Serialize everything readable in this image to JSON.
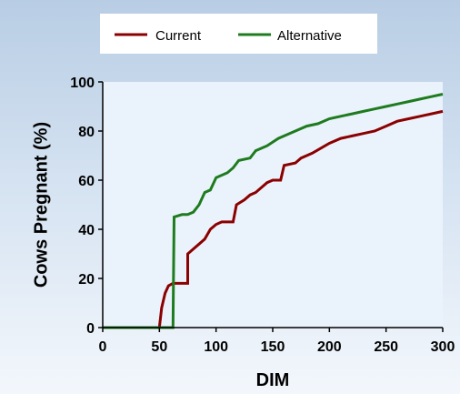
{
  "chart_data": {
    "type": "line",
    "title": "",
    "xlabel": "DIM",
    "ylabel": "Cows Pregnant (%)",
    "xlim": [
      0,
      300
    ],
    "ylim": [
      0,
      100
    ],
    "x_ticks": [
      0,
      50,
      100,
      150,
      200,
      250,
      300
    ],
    "y_ticks": [
      0,
      20,
      40,
      60,
      80,
      100
    ],
    "grid": false,
    "legend_position": "top-center",
    "series": [
      {
        "name": "Current",
        "color": "#8b0000",
        "x": [
          0,
          50,
          52,
          55,
          58,
          62,
          65,
          70,
          75,
          75,
          80,
          85,
          90,
          95,
          100,
          105,
          115,
          118,
          125,
          130,
          135,
          140,
          145,
          150,
          157,
          160,
          170,
          175,
          180,
          185,
          200,
          210,
          220,
          230,
          240,
          250,
          260,
          270,
          280,
          290,
          300
        ],
        "values": [
          0,
          0,
          8,
          14,
          17,
          18,
          18,
          18,
          18,
          30,
          32,
          34,
          36,
          40,
          42,
          43,
          43,
          50,
          52,
          54,
          55,
          57,
          59,
          60,
          60,
          66,
          67,
          69,
          70,
          71,
          75,
          77,
          78,
          79,
          80,
          82,
          84,
          85,
          86,
          87,
          88
        ]
      },
      {
        "name": "Alternative",
        "color": "#1e7b1e",
        "x": [
          0,
          60,
          62,
          63,
          70,
          75,
          80,
          85,
          90,
          95,
          100,
          110,
          115,
          120,
          130,
          135,
          145,
          155,
          160,
          170,
          180,
          190,
          200,
          210,
          220,
          230,
          240,
          250,
          260,
          270,
          280,
          290,
          300
        ],
        "values": [
          0,
          0,
          0,
          45,
          46,
          46,
          47,
          50,
          55,
          56,
          61,
          63,
          65,
          68,
          69,
          72,
          74,
          77,
          78,
          80,
          82,
          83,
          85,
          86,
          87,
          88,
          89,
          90,
          91,
          92,
          93,
          94,
          95
        ]
      }
    ]
  }
}
